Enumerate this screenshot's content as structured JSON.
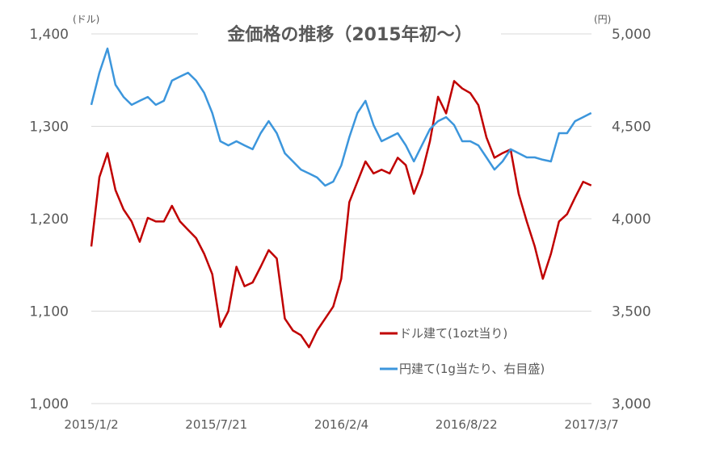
{
  "chart_data": {
    "type": "line",
    "title": "金価格の推移（2015年初～）",
    "left_axis": {
      "unit": "(ドル)",
      "ylim": [
        1000,
        1400
      ],
      "ticks": [
        "1,000",
        "1,100",
        "1,200",
        "1,300",
        "1,400"
      ],
      "tick_values": [
        1000,
        1100,
        1200,
        1300,
        1400
      ]
    },
    "right_axis": {
      "unit": "(円)",
      "ylim": [
        3000,
        5000
      ],
      "ticks": [
        "3,000",
        "3,500",
        "4,000",
        "4,500",
        "5,000"
      ],
      "tick_values": [
        3000,
        3500,
        4000,
        4500,
        5000
      ]
    },
    "x_tick_labels": [
      "2015/1/2",
      "2015/7/21",
      "2016/2/4",
      "2016/8/22",
      "2017/3/7"
    ],
    "x_range_days": [
      0,
      794
    ],
    "x_start": "2015/1/2",
    "x_step_days": 12.8,
    "grid": true,
    "legend_position": "bottom-right",
    "series": [
      {
        "name": "ドル建て(1ozt当り)",
        "axis": "left",
        "color": "#C00000",
        "values": [
          1170,
          1245,
          1271,
          1231,
          1210,
          1197,
          1175,
          1201,
          1197,
          1197,
          1214,
          1197,
          1188,
          1179,
          1162,
          1140,
          1083,
          1100,
          1148,
          1127,
          1131,
          1148,
          1166,
          1157,
          1092,
          1079,
          1074,
          1061,
          1079,
          1092,
          1105,
          1135,
          1218,
          1240,
          1262,
          1249,
          1253,
          1249,
          1266,
          1258,
          1227,
          1249,
          1284,
          1332,
          1314,
          1349,
          1341,
          1336,
          1323,
          1288,
          1266,
          1271,
          1275,
          1227,
          1197,
          1170,
          1135,
          1162,
          1197,
          1205,
          1223,
          1240,
          1236
        ]
      },
      {
        "name": "円建て(1g当たり、右目盛)",
        "axis": "right",
        "color": "#3C96DC",
        "values": [
          4616,
          4790,
          4921,
          4725,
          4659,
          4616,
          4638,
          4659,
          4616,
          4638,
          4747,
          4769,
          4790,
          4747,
          4681,
          4572,
          4419,
          4397,
          4419,
          4397,
          4376,
          4463,
          4528,
          4463,
          4354,
          4310,
          4266,
          4245,
          4223,
          4179,
          4201,
          4288,
          4441,
          4572,
          4638,
          4507,
          4419,
          4441,
          4463,
          4397,
          4310,
          4397,
          4485,
          4528,
          4550,
          4507,
          4419,
          4419,
          4397,
          4332,
          4266,
          4310,
          4376,
          4354,
          4332,
          4332,
          4319,
          4310,
          4463,
          4463,
          4528,
          4550,
          4572
        ]
      }
    ]
  }
}
